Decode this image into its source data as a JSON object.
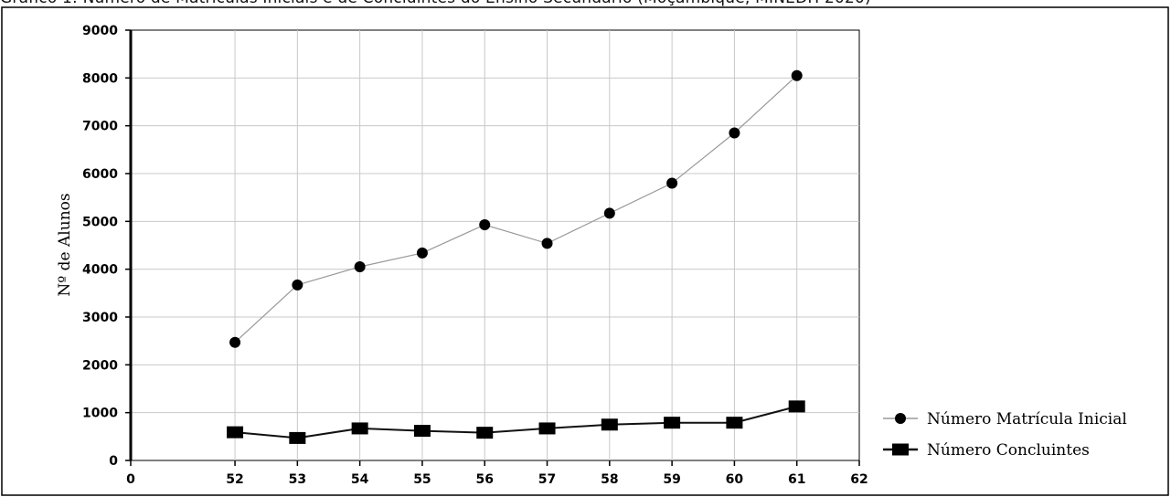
{
  "page": {
    "title_fragment": "Gráfico 1: Número de Matrículas Iniciais e de Concluintes do Ensino Secundário (Moçambique, MINEDH 2020)"
  },
  "chart_data": {
    "type": "line",
    "title": "",
    "xlabel": "",
    "ylabel": "Nº de Alunos",
    "x": [
      52,
      53,
      54,
      55,
      56,
      57,
      58,
      59,
      60,
      61
    ],
    "x_ticks": [
      "0",
      "52",
      "53",
      "54",
      "55",
      "56",
      "57",
      "58",
      "59",
      "60",
      "61",
      "62"
    ],
    "y_ticks": [
      "0",
      "1000",
      "2000",
      "3000",
      "4000",
      "5000",
      "6000",
      "7000",
      "8000",
      "9000"
    ],
    "ylim": [
      0,
      9000
    ],
    "grid": true,
    "legend_position": "bottom-right",
    "series": [
      {
        "name": "Número Matrícula Inicial",
        "marker": "circle",
        "color": "#000000",
        "line_color": "#999999",
        "values": [
          2470,
          3670,
          4050,
          4340,
          4930,
          4540,
          5170,
          5800,
          6850,
          8050
        ]
      },
      {
        "name": "Número Concluintes",
        "marker": "square",
        "color": "#000000",
        "line_color": "#111111",
        "values": [
          590,
          470,
          670,
          620,
          580,
          670,
          750,
          790,
          790,
          1130
        ]
      }
    ]
  }
}
